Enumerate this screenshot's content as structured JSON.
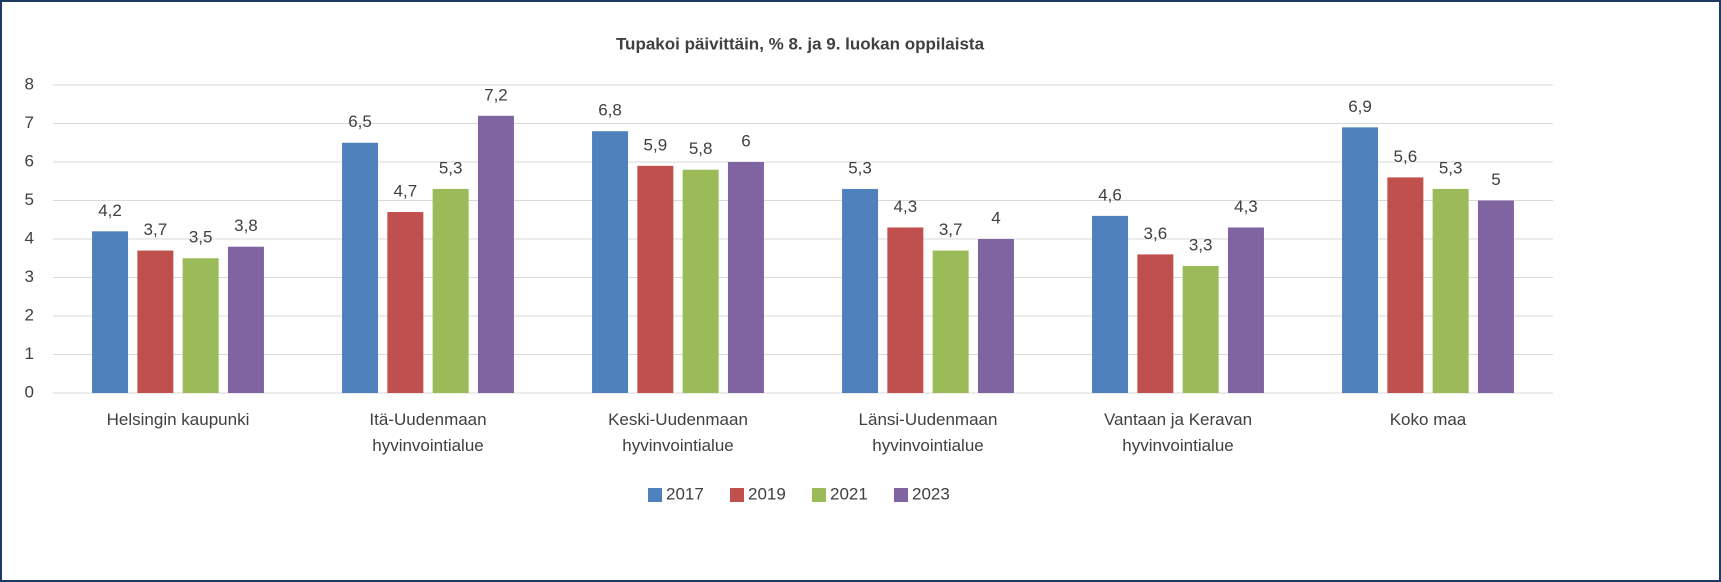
{
  "chart_data": {
    "type": "bar",
    "title": "Tupakoi päivittäin, % 8. ja 9. luokan oppilaista",
    "categories": [
      "Helsingin kaupunki",
      "Itä-Uudenmaan hyvinvointialue",
      "Keski-Uudenmaan hyvinvointialue",
      "Länsi-Uudenmaan hyvinvointialue",
      "Vantaan ja Keravan hyvinvointialue",
      "Koko maa"
    ],
    "series": [
      {
        "name": "2017",
        "color": "#4f81bd",
        "values": [
          4.2,
          6.5,
          6.8,
          5.3,
          4.6,
          6.9
        ],
        "value_labels": [
          "4,2",
          "6,5",
          "6,8",
          "5,3",
          "4,6",
          "6,9"
        ]
      },
      {
        "name": "2019",
        "color": "#c0504d",
        "values": [
          3.7,
          4.7,
          5.9,
          4.3,
          3.6,
          5.6
        ],
        "value_labels": [
          "3,7",
          "4,7",
          "5,9",
          "4,3",
          "3,6",
          "5,6"
        ]
      },
      {
        "name": "2021",
        "color": "#9bbb59",
        "values": [
          3.5,
          5.3,
          5.8,
          3.7,
          3.3,
          5.3
        ],
        "value_labels": [
          "3,5",
          "5,3",
          "5,8",
          "3,7",
          "3,3",
          "5,3"
        ]
      },
      {
        "name": "2023",
        "color": "#8064a2",
        "values": [
          3.8,
          7.2,
          6,
          4,
          4.3,
          5
        ],
        "value_labels": [
          "3,8",
          "7,2",
          "6",
          "4",
          "4,3",
          "5"
        ]
      }
    ],
    "ylim": [
      0,
      8
    ],
    "yticks": [
      0,
      1,
      2,
      3,
      4,
      5,
      6,
      7,
      8
    ],
    "grid": true,
    "legend": "bottom"
  }
}
